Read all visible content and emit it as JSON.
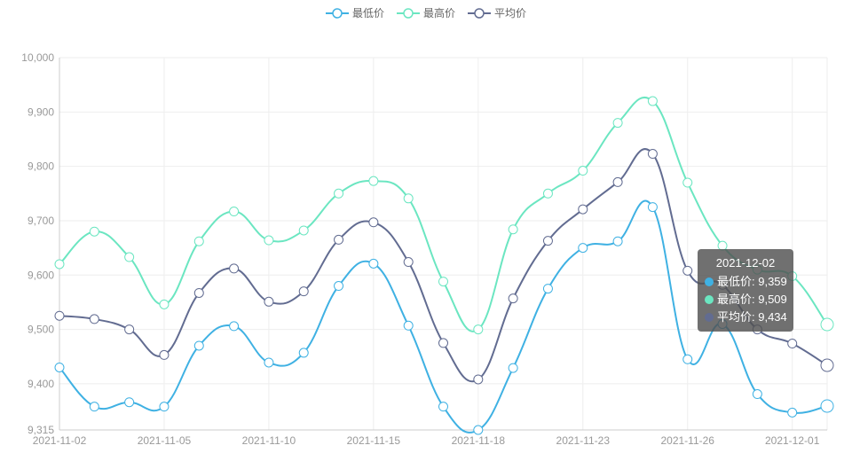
{
  "legend": [
    {
      "name": "最低价",
      "color": "#3fb1e3"
    },
    {
      "name": "最高价",
      "color": "#6be6c1"
    },
    {
      "name": "平均价",
      "color": "#626c91"
    }
  ],
  "tooltip": {
    "title": "2021-12-02",
    "rows": [
      {
        "label": "最低价: 9,359",
        "color": "#3fb1e3"
      },
      {
        "label": "最高价: 9,509",
        "color": "#6be6c1"
      },
      {
        "label": "平均价: 9,434",
        "color": "#626c91"
      }
    ]
  },
  "chart_data": {
    "type": "line",
    "x": [
      "2021-11-02",
      "2021-11-03",
      "2021-11-04",
      "2021-11-05",
      "2021-11-08",
      "2021-11-09",
      "2021-11-10",
      "2021-11-11",
      "2021-11-12",
      "2021-11-15",
      "2021-11-16",
      "2021-11-17",
      "2021-11-18",
      "2021-11-19",
      "2021-11-22",
      "2021-11-23",
      "2021-11-24",
      "2021-11-25",
      "2021-11-26",
      "2021-11-29",
      "2021-11-30",
      "2021-12-01",
      "2021-12-02"
    ],
    "xticks": [
      "2021-11-02",
      "2021-11-05",
      "2021-11-10",
      "2021-11-15",
      "2021-11-18",
      "2021-11-23",
      "2021-11-26",
      "2021-12-01"
    ],
    "yticks": [
      9315,
      9400,
      9500,
      9600,
      9700,
      9800,
      9900,
      10000
    ],
    "ytick_labels": [
      "9,315",
      "9,400",
      "9,500",
      "9,600",
      "9,700",
      "9,800",
      "9,900",
      "10,000"
    ],
    "ylim": [
      9315,
      10000
    ],
    "grid": true,
    "legend_position": "top-center",
    "smooth": true,
    "highlight_index": 22,
    "series": [
      {
        "name": "最低价",
        "color": "#3fb1e3",
        "values": [
          9430,
          9358,
          9366,
          9358,
          9470,
          9506,
          9439,
          9457,
          9580,
          9621,
          9507,
          9358,
          9315,
          9429,
          9575,
          9650,
          9662,
          9725,
          9445,
          9510,
          9381,
          9347,
          9359
        ]
      },
      {
        "name": "最高价",
        "color": "#6be6c1",
        "values": [
          9620,
          9680,
          9633,
          9546,
          9662,
          9717,
          9664,
          9682,
          9750,
          9773,
          9741,
          9588,
          9500,
          9684,
          9750,
          9792,
          9880,
          9920,
          9770,
          9654,
          9610,
          9598,
          9509
        ]
      },
      {
        "name": "平均价",
        "color": "#626c91",
        "values": [
          9525,
          9519,
          9500,
          9453,
          9567,
          9612,
          9551,
          9570,
          9665,
          9697,
          9624,
          9475,
          9408,
          9557,
          9663,
          9721,
          9771,
          9823,
          9608,
          9582,
          9500,
          9474,
          9434
        ]
      }
    ]
  }
}
